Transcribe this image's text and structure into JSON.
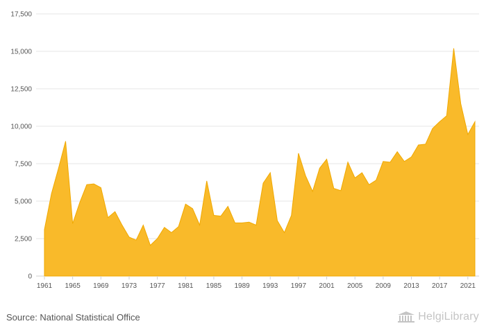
{
  "source_text": "Source: National Statistical Office",
  "brand": {
    "name": "HelgiLibrary",
    "icon": "library-building-icon"
  },
  "colors": {
    "area_fill": "#F9BA2A",
    "area_stroke": "#F0A800",
    "grid": "#E6E6E6",
    "axis_text": "#555555"
  },
  "chart_data": {
    "type": "area",
    "title": "",
    "xlabel": "",
    "ylabel": "",
    "ylim": [
      0,
      17500
    ],
    "yticks": [
      "0",
      "2,500",
      "5,000",
      "7,500",
      "10,000",
      "12,500",
      "15,000",
      "17,500"
    ],
    "xticks": [
      "1961",
      "1965",
      "1969",
      "1973",
      "1977",
      "1981",
      "1985",
      "1989",
      "1993",
      "1997",
      "2001",
      "2005",
      "2009",
      "2013",
      "2017",
      "2021"
    ],
    "grid": true,
    "legend": "none",
    "x": [
      1961,
      1962,
      1963,
      1964,
      1965,
      1966,
      1967,
      1968,
      1969,
      1970,
      1971,
      1972,
      1973,
      1974,
      1975,
      1976,
      1977,
      1978,
      1979,
      1980,
      1981,
      1982,
      1983,
      1984,
      1985,
      1986,
      1987,
      1988,
      1989,
      1990,
      1991,
      1992,
      1993,
      1994,
      1995,
      1996,
      1997,
      1998,
      1999,
      2000,
      2001,
      2002,
      2003,
      2004,
      2005,
      2006,
      2007,
      2008,
      2009,
      2010,
      2011,
      2012,
      2013,
      2014,
      2015,
      2016,
      2017,
      2018,
      2019,
      2020,
      2021,
      2022
    ],
    "values": [
      3100,
      5500,
      7200,
      9000,
      3500,
      4900,
      6100,
      6150,
      5900,
      3900,
      4300,
      3400,
      2600,
      2400,
      3400,
      2050,
      2500,
      3250,
      2900,
      3300,
      4800,
      4500,
      3400,
      6350,
      4050,
      4000,
      4650,
      3550,
      3550,
      3600,
      3400,
      6200,
      6900,
      3700,
      2900,
      4050,
      8200,
      6700,
      5650,
      7200,
      7800,
      5850,
      5700,
      7600,
      6550,
      6900,
      6100,
      6400,
      7650,
      7600,
      8300,
      7650,
      7950,
      8750,
      8800,
      9850,
      10300,
      10700,
      15200,
      11500,
      9450,
      10300
    ]
  }
}
